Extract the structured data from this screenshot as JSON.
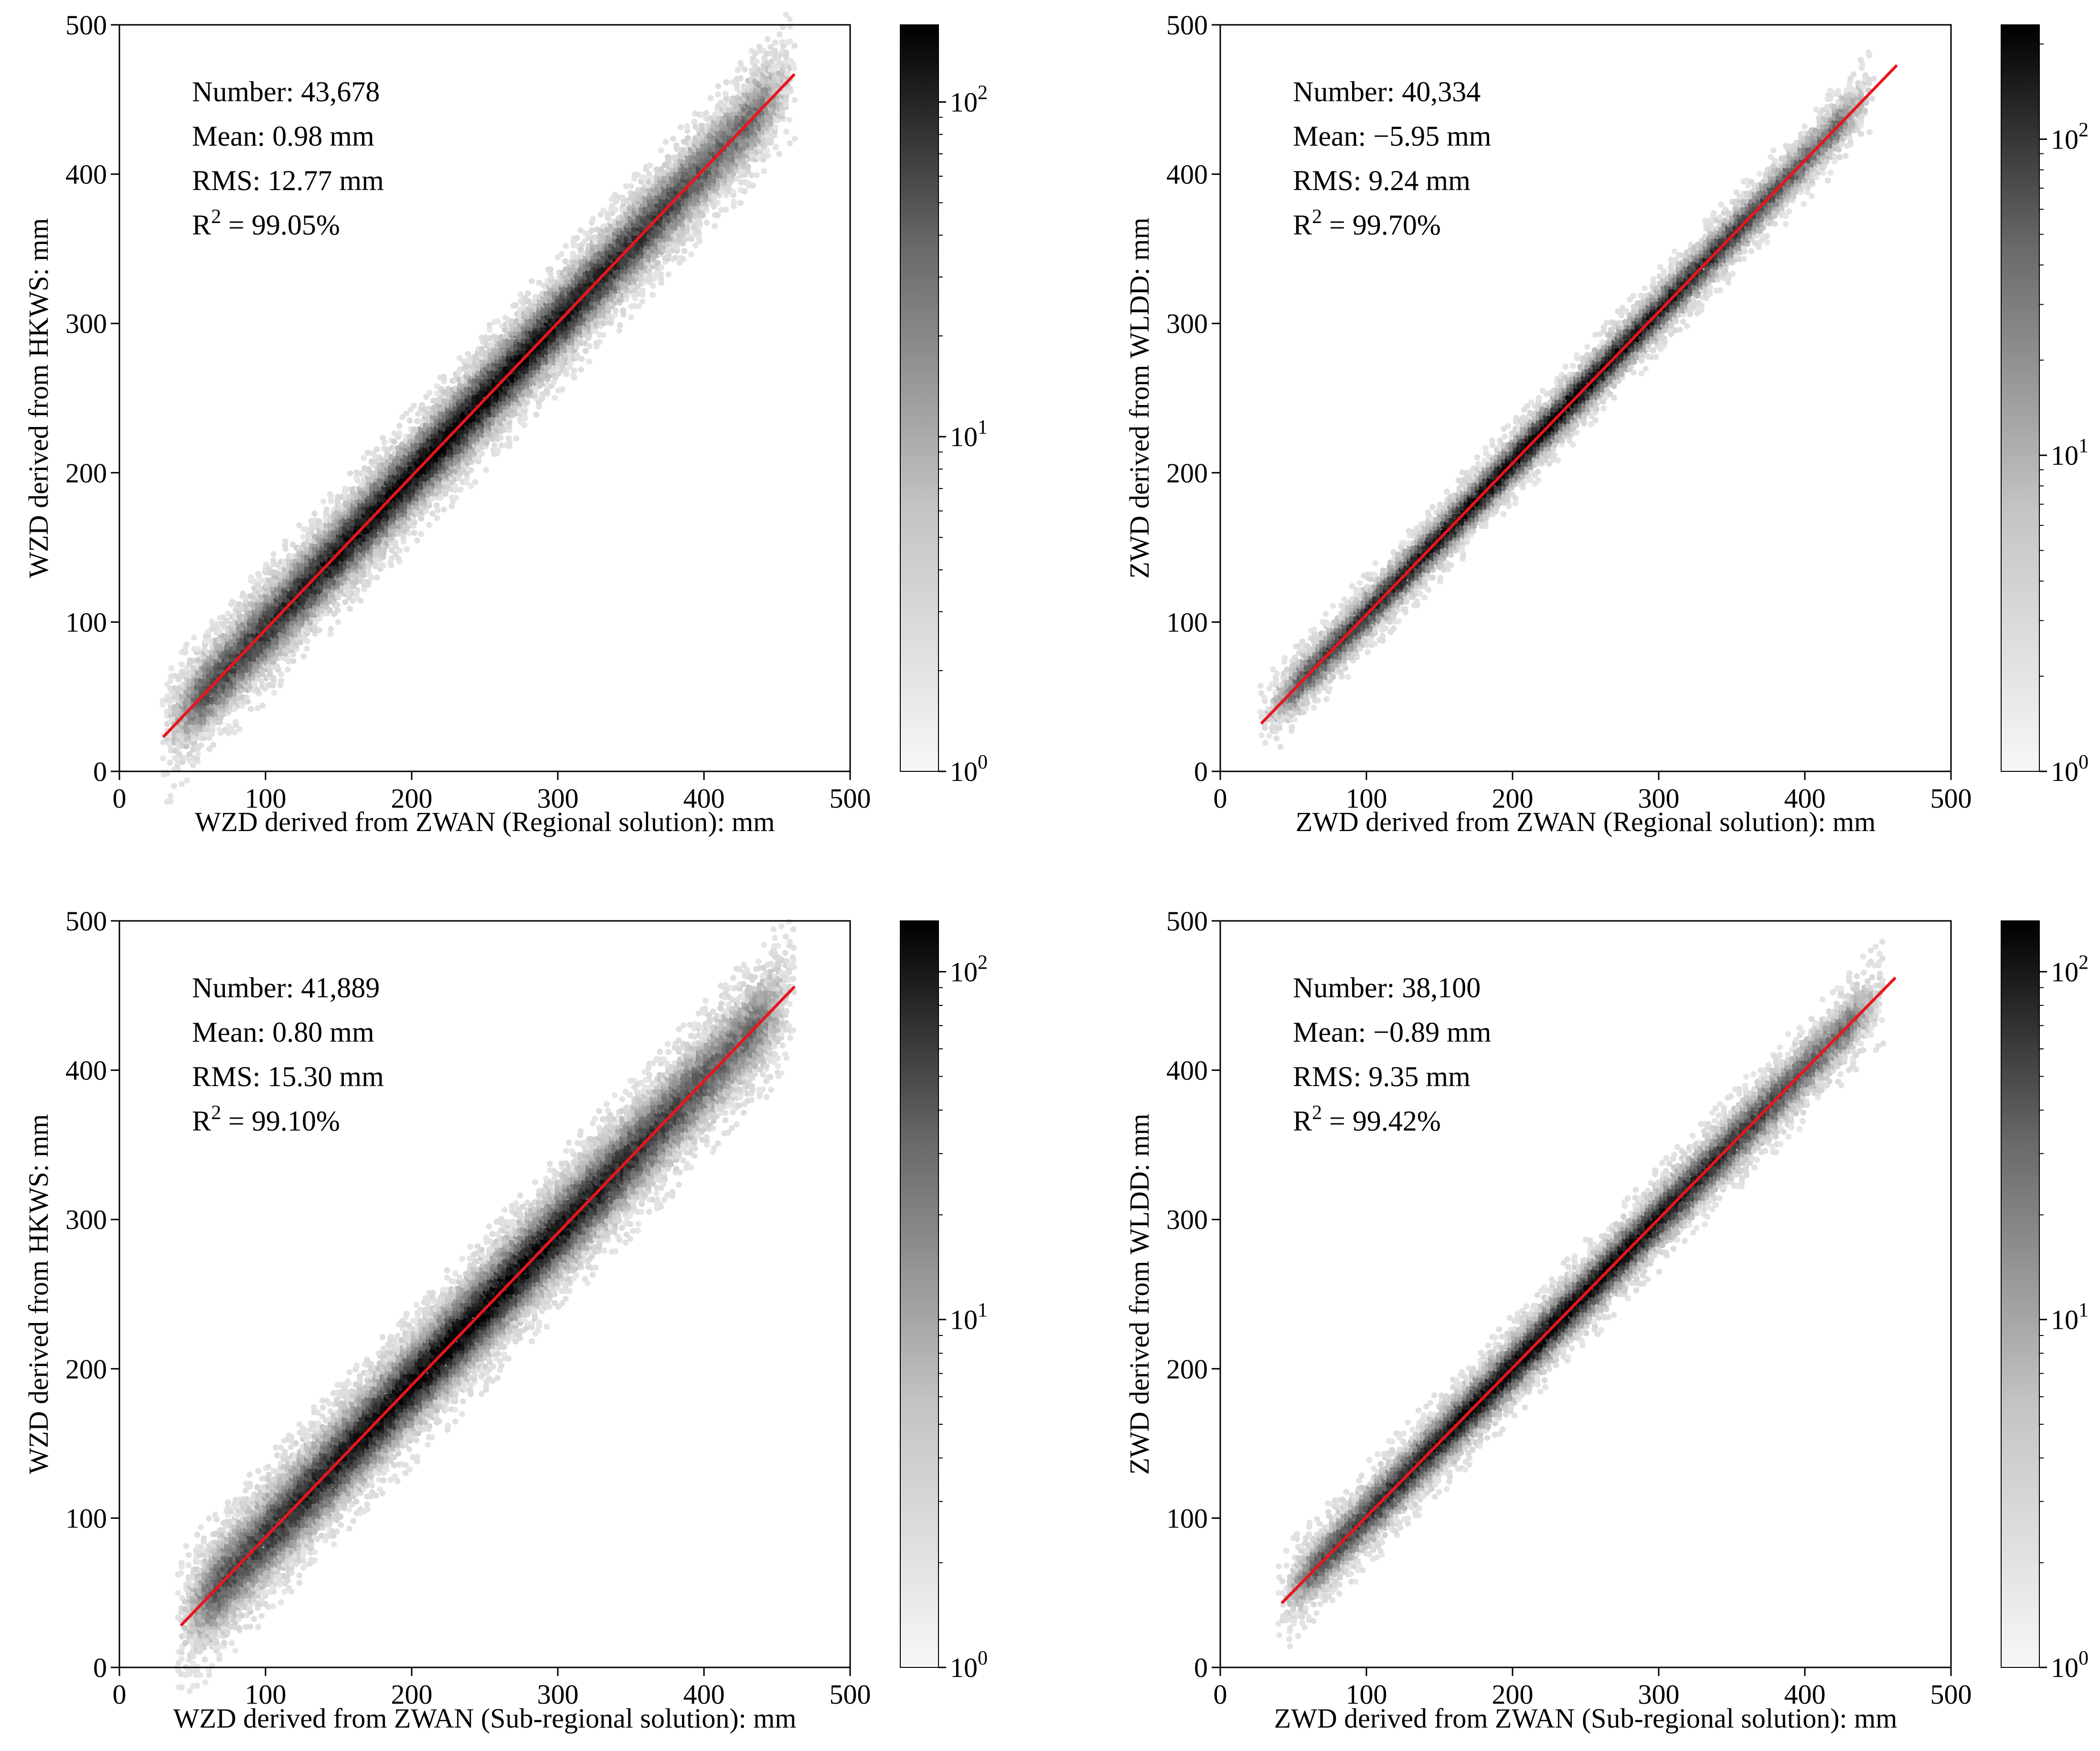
{
  "figure": {
    "background": "#ffffff"
  },
  "colors": {
    "fit_line": "#e8161c",
    "axis": "#000000",
    "density_max": "#000000",
    "density_min": "#f5f5f5"
  },
  "chart_data": [
    {
      "type": "hexbin",
      "xlabel": "WZD derived from ZWAN (Regional solution): mm",
      "ylabel": "WZD derived from HKWS: mm",
      "xlim": [
        0,
        500
      ],
      "ylim": [
        0,
        500
      ],
      "xticks": [
        0,
        100,
        200,
        300,
        400,
        500
      ],
      "yticks": [
        0,
        100,
        200,
        300,
        400,
        500
      ],
      "stats": {
        "number": "Number: 43,678",
        "mean": "Mean: 0.98 mm",
        "rms": "RMS: 12.77 mm",
        "r2_prefix": "R",
        "r2_sup": "2",
        "r2_value": " = 99.05%"
      },
      "fit_line": {
        "x": [
          30,
          462
        ],
        "y": [
          23,
          467
        ]
      },
      "data_range": {
        "x": [
          30,
          462
        ],
        "spread_mm": 15
      },
      "colorbar": {
        "scale": "log",
        "ticks": [
          1,
          10,
          100
        ],
        "tick_base": "10",
        "tick_exps": [
          "0",
          "1",
          "2"
        ],
        "max": 170
      }
    },
    {
      "type": "hexbin",
      "xlabel": "ZWD derived from ZWAN (Regional solution): mm",
      "ylabel": "ZWD derived from WLDD: mm",
      "xlim": [
        0,
        500
      ],
      "ylim": [
        0,
        500
      ],
      "xticks": [
        0,
        100,
        200,
        300,
        400,
        500
      ],
      "yticks": [
        0,
        100,
        200,
        300,
        400,
        500
      ],
      "stats": {
        "number": "Number: 40,334",
        "mean": "Mean: −5.95 mm",
        "rms": "RMS: 9.24 mm",
        "r2_prefix": "R",
        "r2_sup": "2",
        "r2_value": " = 99.70%"
      },
      "fit_line": {
        "x": [
          28,
          463
        ],
        "y": [
          32,
          473
        ]
      },
      "data_range": {
        "x": [
          28,
          448
        ],
        "spread_mm": 9
      },
      "colorbar": {
        "scale": "log",
        "ticks": [
          1,
          10,
          100
        ],
        "tick_base": "10",
        "tick_exps": [
          "0",
          "1",
          "2"
        ],
        "max": 230
      }
    },
    {
      "type": "hexbin",
      "xlabel": "WZD derived from ZWAN (Sub-regional solution): mm",
      "ylabel": "WZD derived from HKWS: mm",
      "xlim": [
        0,
        500
      ],
      "ylim": [
        0,
        500
      ],
      "xticks": [
        0,
        100,
        200,
        300,
        400,
        500
      ],
      "yticks": [
        0,
        100,
        200,
        300,
        400,
        500
      ],
      "stats": {
        "number": "Number: 41,889",
        "mean": "Mean: 0.80 mm",
        "rms": "RMS: 15.30 mm",
        "r2_prefix": "R",
        "r2_sup": "2",
        "r2_value": " = 99.10%"
      },
      "fit_line": {
        "x": [
          42,
          462
        ],
        "y": [
          28,
          456
        ]
      },
      "data_range": {
        "x": [
          40,
          462
        ],
        "spread_mm": 17
      },
      "colorbar": {
        "scale": "log",
        "ticks": [
          1,
          10,
          100
        ],
        "tick_base": "10",
        "tick_exps": [
          "0",
          "1",
          "2"
        ],
        "max": 140
      }
    },
    {
      "type": "hexbin",
      "xlabel": "ZWD derived from ZWAN (Sub-regional solution): mm",
      "ylabel": "ZWD derived from WLDD: mm",
      "xlim": [
        0,
        500
      ],
      "ylim": [
        0,
        500
      ],
      "xticks": [
        0,
        100,
        200,
        300,
        400,
        500
      ],
      "yticks": [
        0,
        100,
        200,
        300,
        400,
        500
      ],
      "stats": {
        "number": "Number: 38,100",
        "mean": "Mean: −0.89 mm",
        "rms": "RMS: 9.35 mm",
        "r2_prefix": "R",
        "r2_sup": "2",
        "r2_value": " = 99.42%"
      },
      "fit_line": {
        "x": [
          42,
          462
        ],
        "y": [
          43,
          462
        ]
      },
      "data_range": {
        "x": [
          40,
          455
        ],
        "spread_mm": 11
      },
      "colorbar": {
        "scale": "log",
        "ticks": [
          1,
          10,
          100
        ],
        "tick_base": "10",
        "tick_exps": [
          "0",
          "1",
          "2"
        ],
        "max": 140
      }
    }
  ]
}
